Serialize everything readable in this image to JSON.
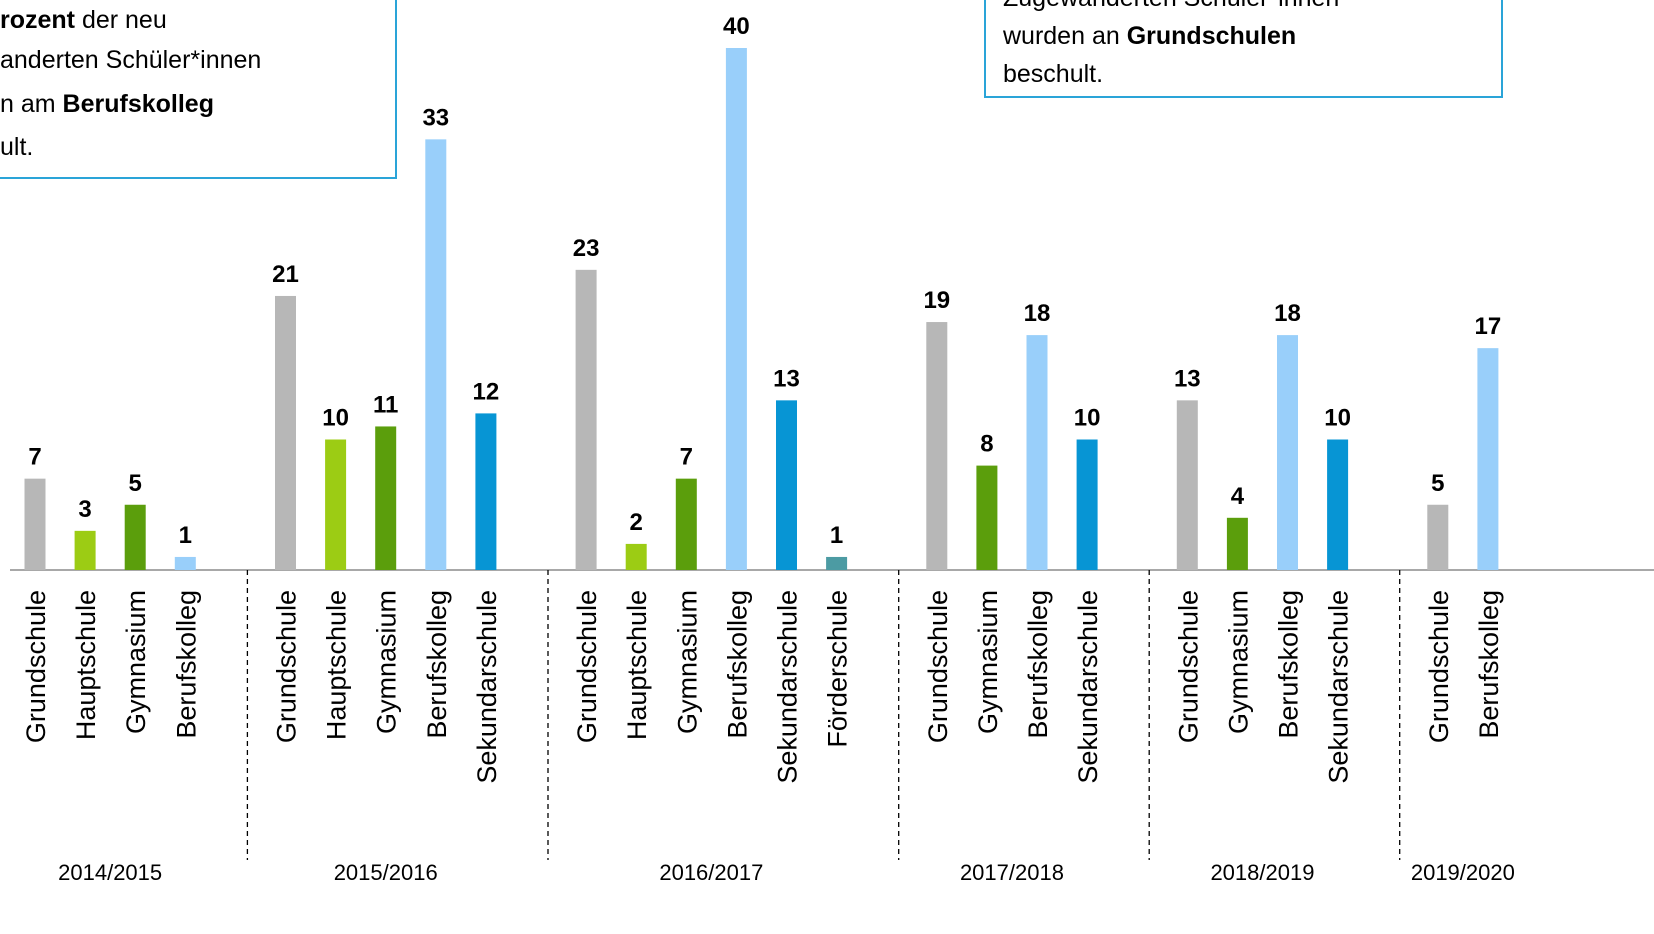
{
  "chart_data": {
    "type": "bar",
    "ylim": [
      0,
      40
    ],
    "colors": {
      "Grundschule": "#b7b7b7",
      "Hauptschule": "#9ccc14",
      "Gymnasium": "#5b9e0c",
      "Berufskolleg": "#99cffa",
      "Sekundarschule": "#0795d4",
      "Förderschule": "#4c9ba3"
    },
    "groups": [
      {
        "label": "2014/2015",
        "categories": [
          "Grundschule",
          "Hauptschule",
          "Gymnasium",
          "Berufskolleg"
        ],
        "values": [
          7,
          3,
          5,
          1
        ]
      },
      {
        "label": "2015/2016",
        "categories": [
          "Grundschule",
          "Hauptschule",
          "Gymnasium",
          "Berufskolleg",
          "Sekundarschule"
        ],
        "values": [
          21,
          10,
          11,
          33,
          12
        ]
      },
      {
        "label": "2016/2017",
        "categories": [
          "Grundschule",
          "Hauptschule",
          "Gymnasium",
          "Berufskolleg",
          "Sekundarschule",
          "Förderschule"
        ],
        "values": [
          23,
          2,
          7,
          40,
          13,
          1
        ]
      },
      {
        "label": "2017/2018",
        "categories": [
          "Grundschule",
          "Gymnasium",
          "Berufskolleg",
          "Sekundarschule"
        ],
        "values": [
          19,
          8,
          18,
          10
        ]
      },
      {
        "label": "2018/2019",
        "categories": [
          "Grundschule",
          "Gymnasium",
          "Berufskolleg",
          "Sekundarschule"
        ],
        "values": [
          13,
          4,
          18,
          10
        ]
      },
      {
        "label": "2019/2020",
        "categories": [
          "Grundschule",
          "Berufskolleg"
        ],
        "values": [
          5,
          17
        ]
      }
    ],
    "annotations": [
      {
        "lines": [
          [
            {
              "text": "rozent",
              "bold": true
            },
            {
              "text": " der neu",
              "bold": false
            }
          ],
          [
            {
              "text": "anderten Schüler*innen",
              "bold": false
            }
          ],
          [
            {
              "text": "n am ",
              "bold": false
            },
            {
              "text": "Berufskolleg",
              "bold": true
            }
          ],
          [
            {
              "text": "ult.",
              "bold": false
            }
          ]
        ]
      },
      {
        "lines": [
          [
            {
              "text": "Zugewanderten Schüler*innen",
              "bold": false
            }
          ],
          [
            {
              "text": "wurden an ",
              "bold": false
            },
            {
              "text": "Grundschulen",
              "bold": true
            }
          ],
          [
            {
              "text": "beschult.",
              "bold": false
            }
          ]
        ]
      }
    ]
  }
}
